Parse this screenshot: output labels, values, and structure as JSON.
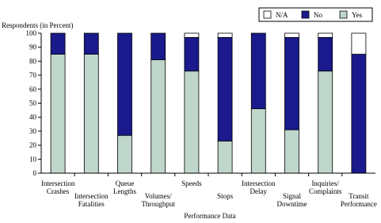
{
  "chart_data": {
    "type": "stacked_bar",
    "y_label": "Respondents (in Percent)",
    "x_label": "Performance Data",
    "categories": [
      "Intersection\nCrashes",
      "Intersection\nFatalities",
      "Queue\nLengths",
      "Volumes/\nThroughput",
      "Speeds",
      "Stops",
      "Intersection\nDelay",
      "Signal\nDowntime",
      "Inquiries/\nComplaints",
      "Transit\nPerformance"
    ],
    "series": [
      {
        "name": "N/A",
        "color": "#ffffff",
        "values": [
          0,
          0,
          0,
          0,
          3,
          3,
          0,
          3,
          3,
          15
        ]
      },
      {
        "name": "No",
        "color": "#1a1a8c",
        "values": [
          15,
          15,
          73,
          19,
          24,
          74,
          54,
          66,
          24,
          85
        ]
      },
      {
        "name": "Yes",
        "color": "#bfd6ca",
        "values": [
          85,
          85,
          27,
          81,
          73,
          23,
          46,
          31,
          73,
          0
        ]
      }
    ],
    "ylim": [
      0,
      100
    ],
    "yticks": [
      0,
      10,
      20,
      30,
      40,
      50,
      60,
      70,
      80,
      90,
      100
    ],
    "legend": "top-right"
  }
}
